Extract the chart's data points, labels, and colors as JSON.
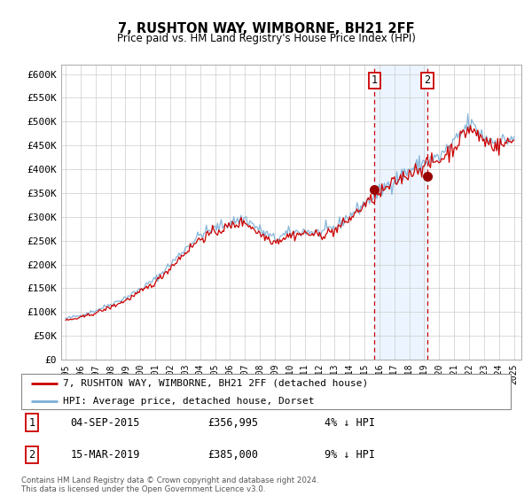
{
  "title": "7, RUSHTON WAY, WIMBORNE, BH21 2FF",
  "subtitle": "Price paid vs. HM Land Registry's House Price Index (HPI)",
  "legend_line1": "7, RUSHTON WAY, WIMBORNE, BH21 2FF (detached house)",
  "legend_line2": "HPI: Average price, detached house, Dorset",
  "footnote": "Contains HM Land Registry data © Crown copyright and database right 2024.\nThis data is licensed under the Open Government Licence v3.0.",
  "sale1_date": "04-SEP-2015",
  "sale1_price": 356995,
  "sale1_label": "1",
  "sale1_pct": "4% ↓ HPI",
  "sale2_date": "15-MAR-2019",
  "sale2_price": 385000,
  "sale2_label": "2",
  "sale2_pct": "9% ↓ HPI",
  "hpi_color": "#7aaed6",
  "price_color": "#cc0000",
  "sale_dot_color": "#990000",
  "marker_box_color": "#cc0000",
  "shade_color": "#ddeeff",
  "ylim_min": 0,
  "ylim_max": 620000,
  "sale1_x": 2015.67,
  "sale2_x": 2019.21,
  "tick_years": [
    1995,
    1996,
    1997,
    1998,
    1999,
    2000,
    2001,
    2002,
    2003,
    2004,
    2005,
    2006,
    2007,
    2008,
    2009,
    2010,
    2011,
    2012,
    2013,
    2014,
    2015,
    2016,
    2017,
    2018,
    2019,
    2020,
    2021,
    2022,
    2023,
    2024,
    2025
  ],
  "hpi_annual": [
    86000,
    93000,
    103000,
    116000,
    130000,
    148000,
    169000,
    200000,
    233000,
    262000,
    276000,
    288000,
    297000,
    272000,
    253000,
    266000,
    270000,
    266000,
    277000,
    302000,
    328000,
    352000,
    378000,
    398000,
    415000,
    425000,
    455000,
    497000,
    468000,
    455000,
    468000
  ],
  "price_annual": [
    82000,
    88000,
    98000,
    110000,
    124000,
    142000,
    162000,
    193000,
    225000,
    254000,
    268000,
    280000,
    290000,
    264000,
    248000,
    261000,
    265000,
    261000,
    271000,
    295000,
    325000,
    348000,
    372000,
    392000,
    408000,
    418000,
    447000,
    487000,
    460000,
    448000,
    461000
  ]
}
